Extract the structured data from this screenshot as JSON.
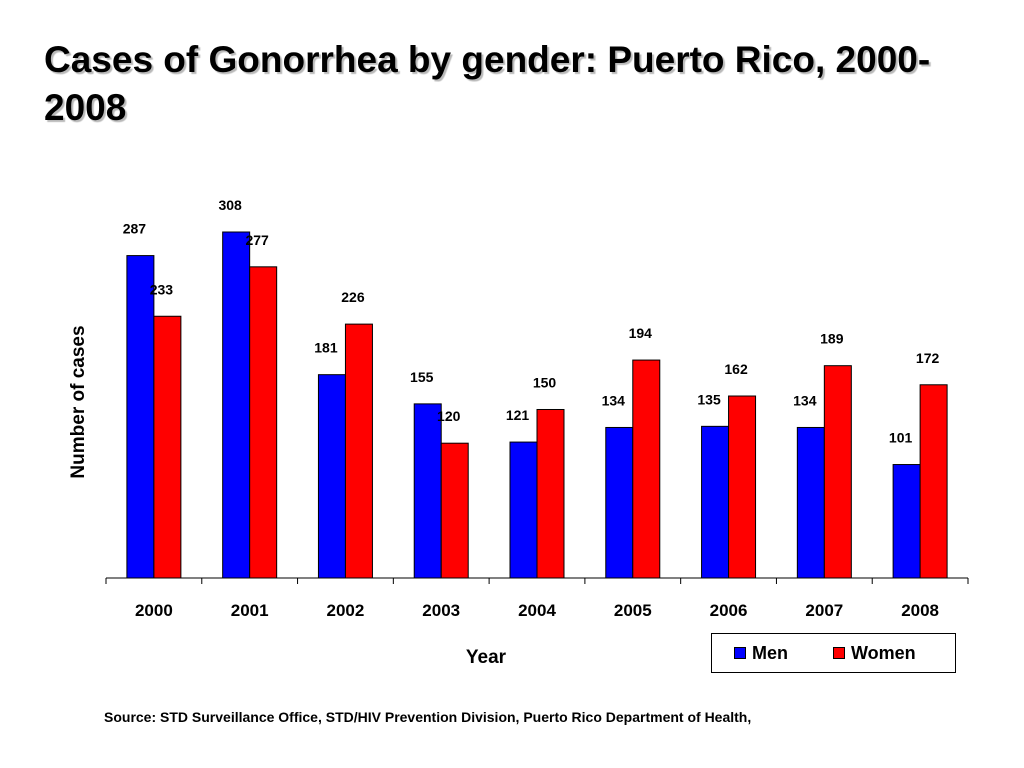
{
  "page": {
    "title": "Cases of Gonorrhea by gender: Puerto Rico, 2000-2008",
    "source": "Source: STD Surveillance Office, STD/HIV Prevention Division, Puerto Rico Department of Health,"
  },
  "chart_data": {
    "type": "bar",
    "xlabel": "Year",
    "ylabel": "Number of cases",
    "categories": [
      "2000",
      "2001",
      "2002",
      "2003",
      "2004",
      "2005",
      "2006",
      "2007",
      "2008"
    ],
    "series": [
      {
        "name": "Men",
        "color": "#0000ff",
        "values": [
          287,
          308,
          181,
          155,
          121,
          134,
          135,
          134,
          101
        ]
      },
      {
        "name": "Women",
        "color": "#ff0000",
        "values": [
          233,
          277,
          226,
          120,
          150,
          194,
          162,
          189,
          172
        ]
      }
    ],
    "ylim": [
      0,
      308
    ],
    "grid": false,
    "legend_position": "bottom-right",
    "data_labels": true
  }
}
